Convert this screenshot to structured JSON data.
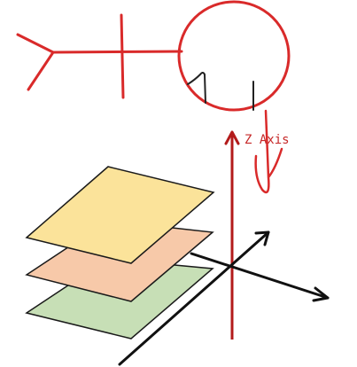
{
  "diagram": {
    "z_axis_label": "Z Axis",
    "colors": {
      "red_ink": "#d92a2a",
      "dark_red_axis": "#b31b1b",
      "black_axis": "#111111",
      "plane_top_fill": "#fbe39a",
      "plane_middle_fill": "#f7c9a9",
      "plane_bottom_fill": "#c7dfb6",
      "plane_stroke": "#1a1a1a"
    },
    "planes": [
      {
        "name": "top-plane",
        "fill_key": "plane_top_fill"
      },
      {
        "name": "middle-plane",
        "fill_key": "plane_middle_fill"
      },
      {
        "name": "bottom-plane",
        "fill_key": "plane_bottom_fill"
      }
    ],
    "sketch_icons": [
      "fish-skeleton-icon",
      "circle-face-icon"
    ]
  }
}
